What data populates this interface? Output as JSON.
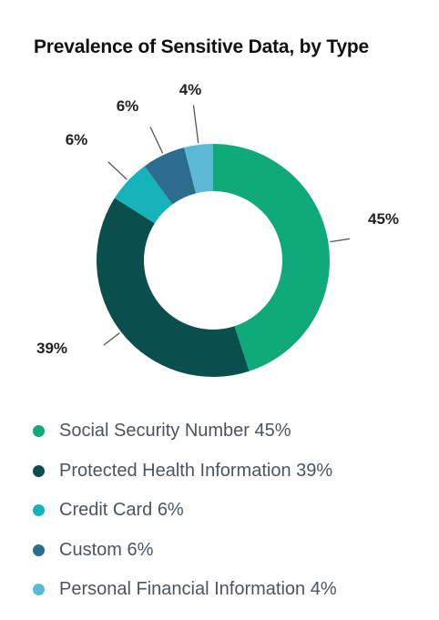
{
  "chart_data": {
    "type": "pie",
    "variant": "donut",
    "title": "Prevalence of Sensitive Data, by Type",
    "series": [
      {
        "name": "Social Security Number",
        "value": 45,
        "label": "45%",
        "legend": "Social Security Number 45%",
        "color": "#0fa97a"
      },
      {
        "name": "Protected Health Information",
        "value": 39,
        "label": "39%",
        "legend": "Protected Health Information 39%",
        "color": "#0b4f4d"
      },
      {
        "name": "Credit Card",
        "value": 6,
        "label": "6%",
        "legend": "Credit Card 6%",
        "color": "#17b3bb"
      },
      {
        "name": "Custom",
        "value": 6,
        "label": "6%",
        "legend": "Custom 6%",
        "color": "#2c6c8f"
      },
      {
        "name": "Personal Financial Information",
        "value": 4,
        "label": "4%",
        "legend": "Personal Financial Information 4%",
        "color": "#5cb9d6"
      }
    ],
    "legend_position": "bottom",
    "start_angle_deg": 0,
    "direction": "clockwise"
  }
}
